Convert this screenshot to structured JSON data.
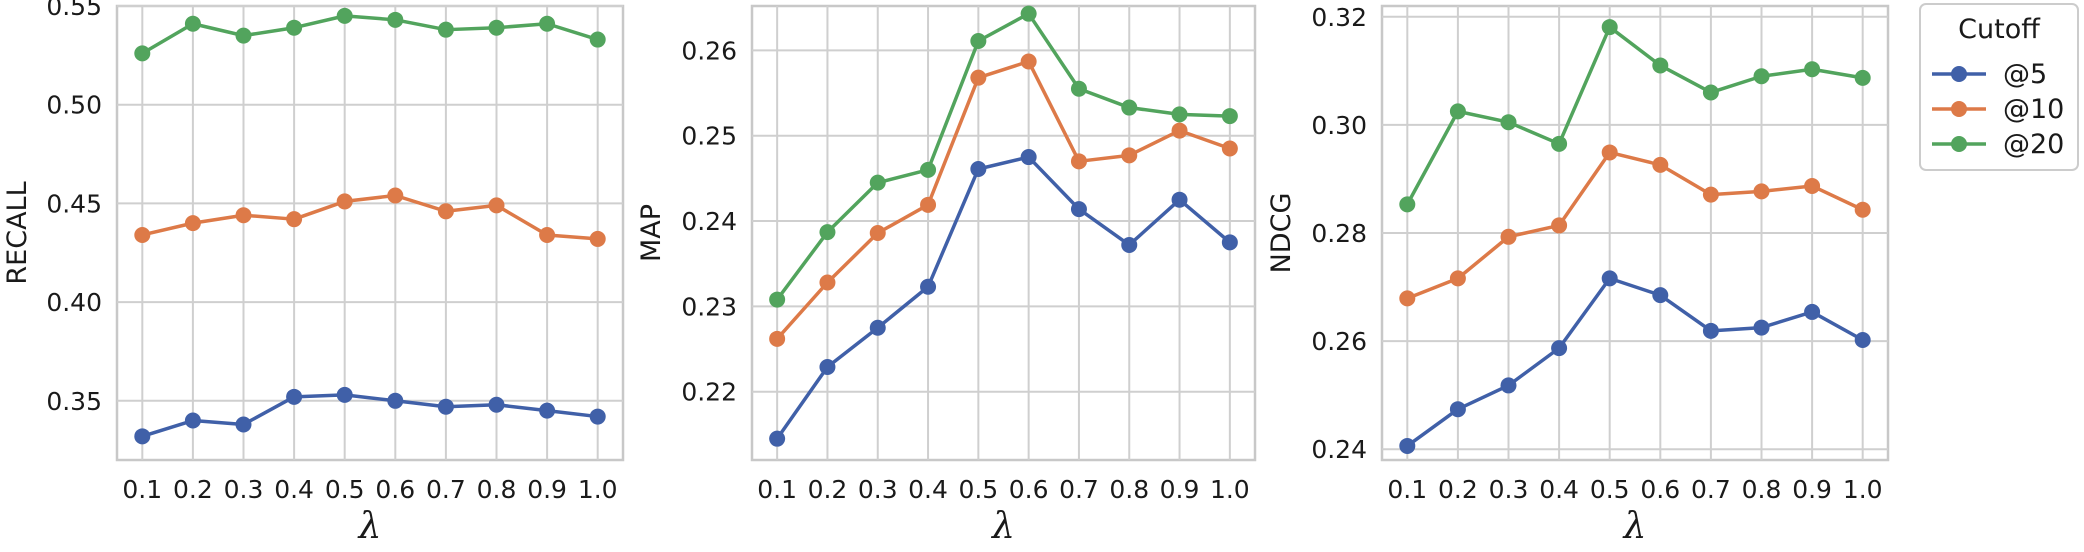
{
  "chart_data": [
    {
      "type": "line",
      "ylabel": "RECALL",
      "xlabel": "λ",
      "x": [
        0.1,
        0.2,
        0.3,
        0.4,
        0.5,
        0.6,
        0.7,
        0.8,
        0.9,
        1.0
      ],
      "x_tick_labels": [
        "0.1",
        "0.2",
        "0.3",
        "0.4",
        "0.5",
        "0.6",
        "0.7",
        "0.8",
        "0.9",
        "1.0"
      ],
      "ylim": [
        0.32,
        0.55
      ],
      "yticks": [
        0.35,
        0.4,
        0.45,
        0.5,
        0.55
      ],
      "y_tick_labels": [
        "0.35",
        "0.40",
        "0.45",
        "0.50",
        "0.55"
      ],
      "grid": true,
      "series": [
        {
          "name": "@5",
          "color": "#4060a8",
          "values": [
            0.332,
            0.34,
            0.338,
            0.352,
            0.353,
            0.35,
            0.347,
            0.348,
            0.345,
            0.342
          ]
        },
        {
          "name": "@10",
          "color": "#dd7a48",
          "values": [
            0.434,
            0.44,
            0.444,
            0.442,
            0.451,
            0.454,
            0.446,
            0.449,
            0.434,
            0.432
          ]
        },
        {
          "name": "@20",
          "color": "#52a45d",
          "values": [
            0.526,
            0.541,
            0.535,
            0.539,
            0.545,
            0.543,
            0.538,
            0.539,
            0.541,
            0.533
          ]
        }
      ]
    },
    {
      "type": "line",
      "ylabel": "MAP",
      "xlabel": "λ",
      "x": [
        0.1,
        0.2,
        0.3,
        0.4,
        0.5,
        0.6,
        0.7,
        0.8,
        0.9,
        1.0
      ],
      "x_tick_labels": [
        "0.1",
        "0.2",
        "0.3",
        "0.4",
        "0.5",
        "0.6",
        "0.7",
        "0.8",
        "0.9",
        "1.0"
      ],
      "ylim": [
        0.212,
        0.2652
      ],
      "yticks": [
        0.22,
        0.23,
        0.24,
        0.25,
        0.26
      ],
      "y_tick_labels": [
        "0.22",
        "0.23",
        "0.24",
        "0.25",
        "0.26"
      ],
      "grid": true,
      "series": [
        {
          "name": "@5",
          "color": "#4060a8",
          "values": [
            0.2145,
            0.2229,
            0.2275,
            0.2323,
            0.2461,
            0.2475,
            0.2414,
            0.2372,
            0.2425,
            0.2375
          ]
        },
        {
          "name": "@10",
          "color": "#dd7a48",
          "values": [
            0.2262,
            0.2328,
            0.2386,
            0.2419,
            0.2568,
            0.2587,
            0.247,
            0.2477,
            0.2506,
            0.2485
          ]
        },
        {
          "name": "@20",
          "color": "#52a45d",
          "values": [
            0.2308,
            0.2387,
            0.2445,
            0.246,
            0.2611,
            0.2643,
            0.2555,
            0.2533,
            0.2525,
            0.2523
          ]
        }
      ]
    },
    {
      "type": "line",
      "ylabel": "NDCG",
      "xlabel": "λ",
      "x": [
        0.1,
        0.2,
        0.3,
        0.4,
        0.5,
        0.6,
        0.7,
        0.8,
        0.9,
        1.0
      ],
      "x_tick_labels": [
        "0.1",
        "0.2",
        "0.3",
        "0.4",
        "0.5",
        "0.6",
        "0.7",
        "0.8",
        "0.9",
        "1.0"
      ],
      "ylim": [
        0.238,
        0.322
      ],
      "yticks": [
        0.24,
        0.26,
        0.28,
        0.3,
        0.32
      ],
      "y_tick_labels": [
        "0.24",
        "0.26",
        "0.28",
        "0.30",
        "0.32"
      ],
      "grid": true,
      "series": [
        {
          "name": "@5",
          "color": "#4060a8",
          "values": [
            0.2406,
            0.2474,
            0.2518,
            0.2587,
            0.2716,
            0.2685,
            0.2619,
            0.2625,
            0.2654,
            0.2602
          ]
        },
        {
          "name": "@10",
          "color": "#dd7a48",
          "values": [
            0.2679,
            0.2716,
            0.2793,
            0.2814,
            0.2949,
            0.2926,
            0.2871,
            0.2877,
            0.2887,
            0.2843
          ]
        },
        {
          "name": "@20",
          "color": "#52a45d",
          "values": [
            0.2853,
            0.3025,
            0.3005,
            0.2965,
            0.3181,
            0.311,
            0.306,
            0.309,
            0.3103,
            0.3087
          ]
        }
      ]
    }
  ],
  "legend": {
    "title": "Cutoff",
    "placement": "outside-right-top",
    "entries": [
      {
        "label": "@5",
        "color": "#4060a8"
      },
      {
        "label": "@10",
        "color": "#dd7a48"
      },
      {
        "label": "@20",
        "color": "#52a45d"
      }
    ]
  }
}
